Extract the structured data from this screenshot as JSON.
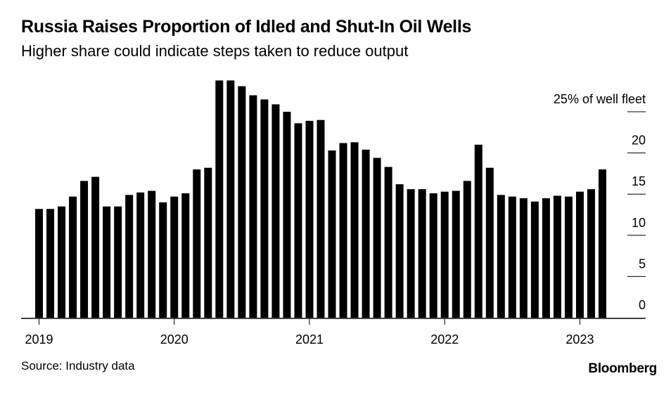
{
  "header": {
    "title": "Russia Raises Proportion of Idled and Shut-In Oil Wells",
    "subtitle": "Higher share could indicate steps taken to reduce output"
  },
  "footer": {
    "source": "Source: Industry data",
    "brand": "Bloomberg"
  },
  "colors": {
    "bar": "#000000",
    "axis": "#000000",
    "background": "#ffffff"
  },
  "chart_data": {
    "type": "bar",
    "title": "Russia Raises Proportion of Idled and Shut-In Oil Wells",
    "subtitle": "Higher share could indicate steps taken to reduce output",
    "xlabel": "",
    "ylabel": "% of well fleet",
    "ylim": [
      0,
      29
    ],
    "y_ticks": [
      {
        "value": 25,
        "label": "25% of well fleet"
      },
      {
        "value": 20,
        "label": "20"
      },
      {
        "value": 15,
        "label": "15"
      },
      {
        "value": 10,
        "label": "10"
      },
      {
        "value": 5,
        "label": "5"
      },
      {
        "value": 0,
        "label": "0"
      }
    ],
    "x_ticks": [
      {
        "index": 0,
        "label": "2019"
      },
      {
        "index": 12,
        "label": "2020"
      },
      {
        "index": 24,
        "label": "2021"
      },
      {
        "index": 36,
        "label": "2022"
      },
      {
        "index": 48,
        "label": "2023"
      }
    ],
    "categories": [
      "Jan 2019",
      "Feb 2019",
      "Mar 2019",
      "Apr 2019",
      "May 2019",
      "Jun 2019",
      "Jul 2019",
      "Aug 2019",
      "Sep 2019",
      "Oct 2019",
      "Nov 2019",
      "Dec 2019",
      "Jan 2020",
      "Feb 2020",
      "Mar 2020",
      "Apr 2020",
      "May 2020",
      "Jun 2020",
      "Jul 2020",
      "Aug 2020",
      "Sep 2020",
      "Oct 2020",
      "Nov 2020",
      "Dec 2020",
      "Jan 2021",
      "Feb 2021",
      "Mar 2021",
      "Apr 2021",
      "May 2021",
      "Jun 2021",
      "Jul 2021",
      "Aug 2021",
      "Sep 2021",
      "Oct 2021",
      "Nov 2021",
      "Dec 2021",
      "Jan 2022",
      "Feb 2022",
      "Mar 2022",
      "Apr 2022",
      "May 2022",
      "Jun 2022",
      "Jul 2022",
      "Aug 2022",
      "Sep 2022",
      "Oct 2022",
      "Nov 2022",
      "Dec 2022",
      "Jan 2023",
      "Feb 2023",
      "Mar 2023"
    ],
    "values": [
      13.2,
      13.2,
      13.5,
      14.7,
      16.6,
      17.1,
      13.5,
      13.5,
      14.9,
      15.2,
      15.4,
      14.0,
      14.7,
      15.1,
      18.0,
      18.2,
      28.8,
      28.8,
      28.1,
      27.0,
      26.5,
      25.9,
      25.0,
      23.6,
      23.9,
      24.0,
      20.3,
      21.2,
      21.3,
      20.4,
      19.4,
      18.3,
      16.2,
      15.6,
      15.6,
      15.1,
      15.3,
      15.4,
      16.6,
      21.0,
      18.2,
      14.9,
      14.7,
      14.5,
      14.1,
      14.5,
      14.8,
      14.7,
      15.3,
      15.6,
      18.0
    ]
  }
}
